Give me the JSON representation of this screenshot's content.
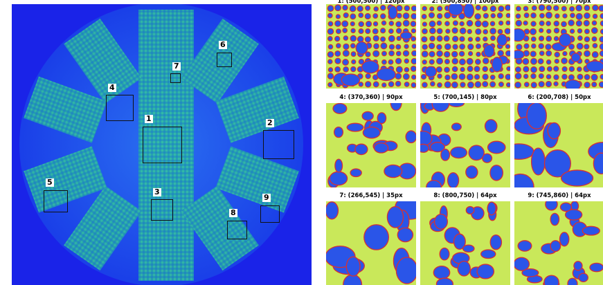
{
  "overview": {
    "regions": [
      {
        "label": "1"
      },
      {
        "label": "2"
      },
      {
        "label": "3"
      },
      {
        "label": "4"
      },
      {
        "label": "5"
      },
      {
        "label": "6"
      },
      {
        "label": "7"
      },
      {
        "label": "8"
      },
      {
        "label": "9"
      }
    ]
  },
  "panels": [
    {
      "title": "1: (500,500) | 120px",
      "style": "dense"
    },
    {
      "title": "2: (500,850) | 100px",
      "style": "dense"
    },
    {
      "title": "3: (790,500) | 70px",
      "style": "dense"
    },
    {
      "title": "4: (370,360) | 90px",
      "style": "mid"
    },
    {
      "title": "5: (700,145) | 80px",
      "style": "mid"
    },
    {
      "title": "6: (200,708) | 50px",
      "style": "sparse"
    },
    {
      "title": "7: (266,545) | 35px",
      "style": "sparse"
    },
    {
      "title": "8: (800,750) | 64px",
      "style": "mid"
    },
    {
      "title": "9: (745,860) | 64px",
      "style": "mid"
    }
  ],
  "colors": {
    "background_blue": "#1a23e8",
    "disc_blue": "#1b3df0",
    "segment_green": "#2fb9a0",
    "panel_yellow": "#c9e85a",
    "panel_edge": "#d83030",
    "panel_blue": "#2a55e8"
  }
}
